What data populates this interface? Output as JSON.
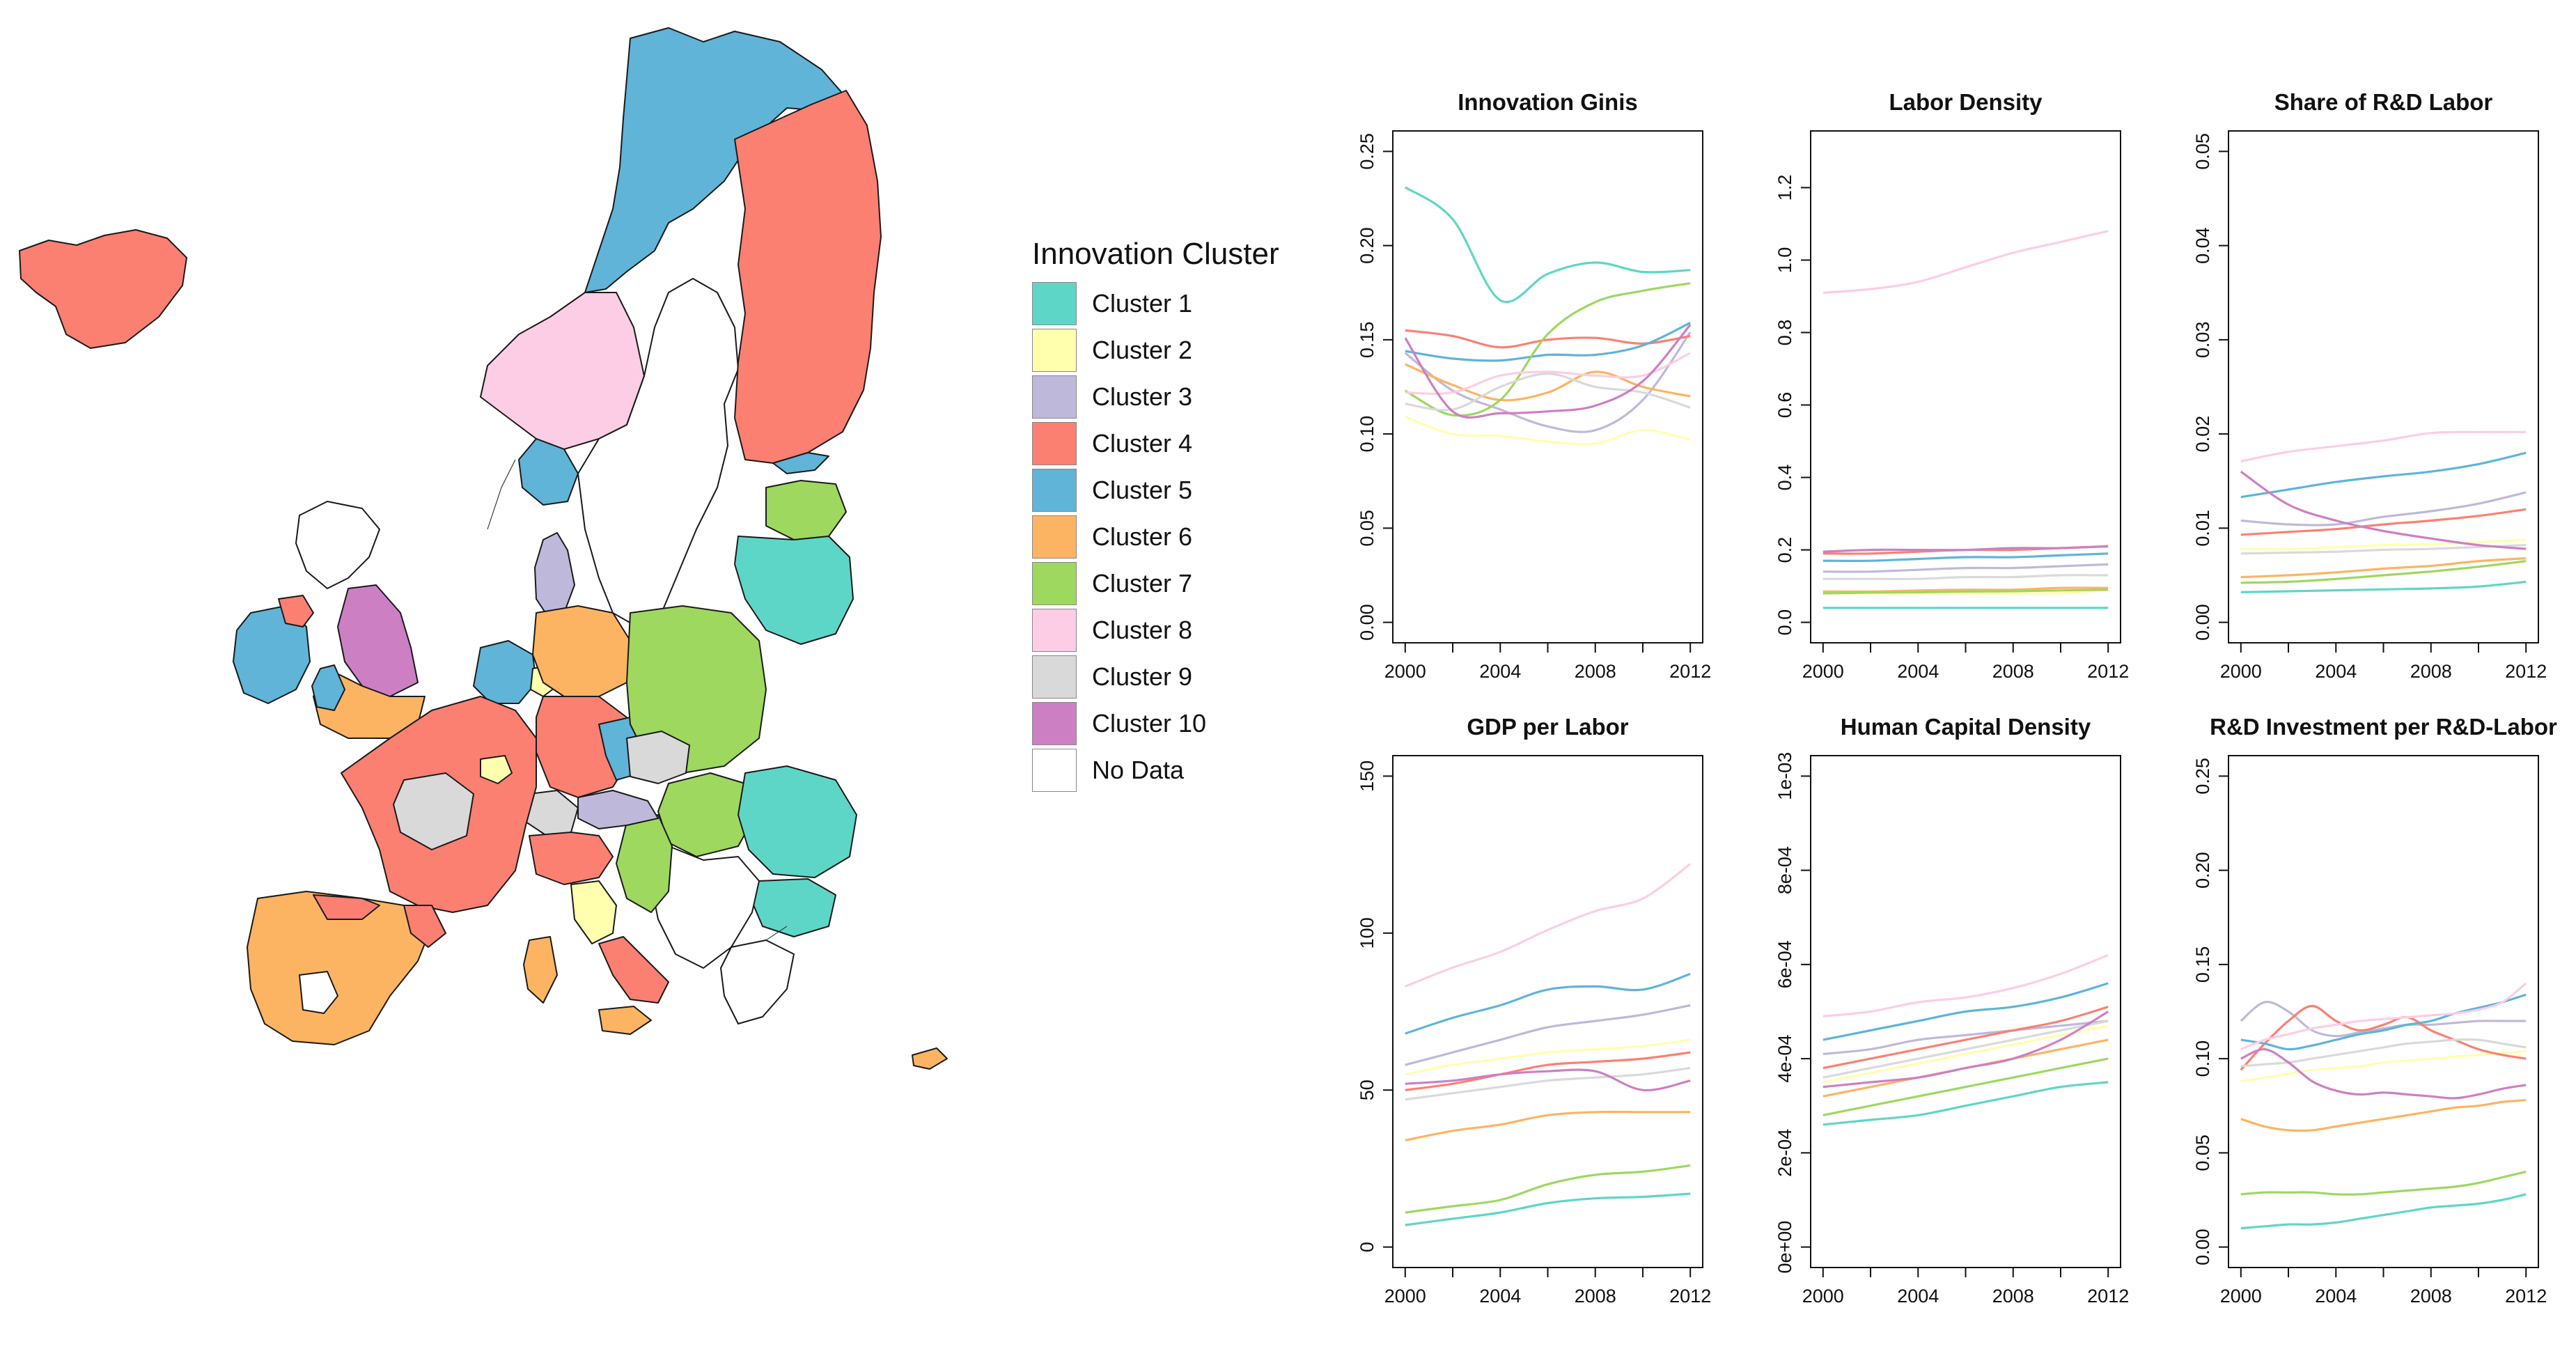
{
  "legend": {
    "title": "Innovation Cluster",
    "items": [
      {
        "label": "Cluster 1",
        "color": "#5ED6C7"
      },
      {
        "label": "Cluster 2",
        "color": "#FFFFAE"
      },
      {
        "label": "Cluster 3",
        "color": "#BEB9DA"
      },
      {
        "label": "Cluster 4",
        "color": "#FB8072"
      },
      {
        "label": "Cluster 5",
        "color": "#5FB4D8"
      },
      {
        "label": "Cluster 6",
        "color": "#FDB462"
      },
      {
        "label": "Cluster 7",
        "color": "#9ED85F"
      },
      {
        "label": "Cluster 8",
        "color": "#FCCDE5"
      },
      {
        "label": "Cluster 9",
        "color": "#D9D9D9"
      },
      {
        "label": "Cluster 10",
        "color": "#CD7FC4"
      },
      {
        "label": "No Data",
        "color": "#FFFFFF"
      }
    ]
  },
  "chart_data": [
    {
      "type": "line",
      "title": "Innovation Ginis",
      "x": [
        2000,
        2002,
        2004,
        2006,
        2008,
        2010,
        2012
      ],
      "xticks": [
        "2000",
        "2004",
        "2008",
        "2012"
      ],
      "ylim": [
        0,
        0.25
      ],
      "yticks": [
        "0.00",
        "0.05",
        "0.10",
        "0.15",
        "0.20",
        "0.25"
      ],
      "series": [
        {
          "name": "Cluster 1",
          "values": [
            0.231,
            0.214,
            0.171,
            0.185,
            0.191,
            0.186,
            0.187
          ]
        },
        {
          "name": "Cluster 2",
          "values": [
            0.109,
            0.1,
            0.099,
            0.096,
            0.095,
            0.102,
            0.097
          ]
        },
        {
          "name": "Cluster 3",
          "values": [
            0.143,
            0.123,
            0.113,
            0.104,
            0.102,
            0.118,
            0.154
          ]
        },
        {
          "name": "Cluster 4",
          "values": [
            0.155,
            0.152,
            0.146,
            0.15,
            0.151,
            0.148,
            0.152
          ]
        },
        {
          "name": "Cluster 5",
          "values": [
            0.144,
            0.14,
            0.139,
            0.142,
            0.142,
            0.147,
            0.159
          ]
        },
        {
          "name": "Cluster 6",
          "values": [
            0.137,
            0.126,
            0.118,
            0.122,
            0.133,
            0.125,
            0.12
          ]
        },
        {
          "name": "Cluster 7",
          "values": [
            0.123,
            0.11,
            0.118,
            0.153,
            0.17,
            0.176,
            0.18
          ]
        },
        {
          "name": "Cluster 8",
          "values": [
            0.122,
            0.122,
            0.131,
            0.133,
            0.131,
            0.131,
            0.143
          ]
        },
        {
          "name": "Cluster 9",
          "values": [
            0.116,
            0.113,
            0.125,
            0.132,
            0.125,
            0.122,
            0.114
          ]
        },
        {
          "name": "Cluster 10",
          "values": [
            0.151,
            0.112,
            0.111,
            0.112,
            0.115,
            0.128,
            0.158
          ]
        }
      ]
    },
    {
      "type": "line",
      "title": "Labor Density",
      "x": [
        2000,
        2002,
        2004,
        2006,
        2008,
        2010,
        2012
      ],
      "xticks": [
        "2000",
        "2004",
        "2008",
        "2012"
      ],
      "ylim": [
        0,
        1.3
      ],
      "yticks": [
        "0.0",
        "0.2",
        "0.4",
        "0.6",
        "0.8",
        "1.0",
        "1.2"
      ],
      "series": [
        {
          "name": "Cluster 1",
          "values": [
            0.04,
            0.04,
            0.04,
            0.04,
            0.04,
            0.04,
            0.04
          ]
        },
        {
          "name": "Cluster 2",
          "values": [
            0.08,
            0.08,
            0.08,
            0.08,
            0.08,
            0.08,
            0.09
          ]
        },
        {
          "name": "Cluster 3",
          "values": [
            0.14,
            0.14,
            0.145,
            0.15,
            0.15,
            0.155,
            0.16
          ]
        },
        {
          "name": "Cluster 4",
          "values": [
            0.19,
            0.19,
            0.195,
            0.2,
            0.2,
            0.205,
            0.21
          ]
        },
        {
          "name": "Cluster 5",
          "values": [
            0.17,
            0.17,
            0.175,
            0.18,
            0.18,
            0.185,
            0.19
          ]
        },
        {
          "name": "Cluster 6",
          "values": [
            0.085,
            0.085,
            0.088,
            0.09,
            0.09,
            0.095,
            0.095
          ]
        },
        {
          "name": "Cluster 7",
          "values": [
            0.08,
            0.082,
            0.083,
            0.085,
            0.086,
            0.088,
            0.09
          ]
        },
        {
          "name": "Cluster 8",
          "values": [
            0.91,
            0.92,
            0.94,
            0.98,
            1.02,
            1.05,
            1.08
          ]
        },
        {
          "name": "Cluster 9",
          "values": [
            0.12,
            0.12,
            0.12,
            0.125,
            0.125,
            0.13,
            0.13
          ]
        },
        {
          "name": "Cluster 10",
          "values": [
            0.195,
            0.2,
            0.2,
            0.2,
            0.205,
            0.205,
            0.21
          ]
        }
      ]
    },
    {
      "type": "line",
      "title": "Share of R&D Labor",
      "x": [
        2000,
        2002,
        2004,
        2006,
        2008,
        2010,
        2012
      ],
      "xticks": [
        "2000",
        "2004",
        "2008",
        "2012"
      ],
      "ylim": [
        0,
        0.05
      ],
      "yticks": [
        "0.00",
        "0.01",
        "0.02",
        "0.03",
        "0.04",
        "0.05"
      ],
      "series": [
        {
          "name": "Cluster 1",
          "values": [
            0.0032,
            0.0033,
            0.0034,
            0.0035,
            0.0036,
            0.0038,
            0.0043
          ]
        },
        {
          "name": "Cluster 2",
          "values": [
            0.0078,
            0.0078,
            0.008,
            0.0082,
            0.0083,
            0.0085,
            0.0088
          ]
        },
        {
          "name": "Cluster 3",
          "values": [
            0.0108,
            0.0104,
            0.0104,
            0.0112,
            0.0118,
            0.0126,
            0.0138
          ]
        },
        {
          "name": "Cluster 4",
          "values": [
            0.0093,
            0.0096,
            0.0099,
            0.0104,
            0.0108,
            0.0113,
            0.012
          ]
        },
        {
          "name": "Cluster 5",
          "values": [
            0.0133,
            0.0141,
            0.0149,
            0.0155,
            0.016,
            0.0168,
            0.018
          ]
        },
        {
          "name": "Cluster 6",
          "values": [
            0.0048,
            0.005,
            0.0053,
            0.0057,
            0.006,
            0.0065,
            0.0068
          ]
        },
        {
          "name": "Cluster 7",
          "values": [
            0.0042,
            0.0043,
            0.0046,
            0.005,
            0.0054,
            0.0059,
            0.0065
          ]
        },
        {
          "name": "Cluster 8",
          "values": [
            0.0171,
            0.0181,
            0.0187,
            0.0193,
            0.0201,
            0.0202,
            0.0202
          ]
        },
        {
          "name": "Cluster 9",
          "values": [
            0.0073,
            0.0074,
            0.0075,
            0.0077,
            0.0078,
            0.008,
            0.0082
          ]
        },
        {
          "name": "Cluster 10",
          "values": [
            0.016,
            0.0125,
            0.0108,
            0.0097,
            0.0089,
            0.0082,
            0.0078
          ]
        }
      ]
    },
    {
      "type": "line",
      "title": "GDP per Labor",
      "x": [
        2000,
        2002,
        2004,
        2006,
        2008,
        2010,
        2012
      ],
      "xticks": [
        "2000",
        "2004",
        "2008",
        "2012"
      ],
      "ylim": [
        0,
        150
      ],
      "yticks": [
        "0",
        "50",
        "100",
        "150"
      ],
      "series": [
        {
          "name": "Cluster 1",
          "values": [
            7,
            9,
            11,
            14,
            15.5,
            16,
            17
          ]
        },
        {
          "name": "Cluster 2",
          "values": [
            55,
            58,
            60,
            62,
            63,
            64,
            66
          ]
        },
        {
          "name": "Cluster 3",
          "values": [
            58,
            62,
            66,
            70,
            72,
            74,
            77
          ]
        },
        {
          "name": "Cluster 4",
          "values": [
            50,
            52,
            55,
            58,
            59,
            60,
            62
          ]
        },
        {
          "name": "Cluster 5",
          "values": [
            68,
            73,
            77,
            82,
            83,
            82,
            87
          ]
        },
        {
          "name": "Cluster 6",
          "values": [
            34,
            37,
            39,
            42,
            43,
            43,
            43
          ]
        },
        {
          "name": "Cluster 7",
          "values": [
            11,
            13,
            15,
            20,
            23,
            24,
            26
          ]
        },
        {
          "name": "Cluster 8",
          "values": [
            83,
            89,
            94,
            101,
            107,
            111,
            122
          ]
        },
        {
          "name": "Cluster 9",
          "values": [
            47,
            49,
            51,
            53,
            54,
            55,
            57
          ]
        },
        {
          "name": "Cluster 10",
          "values": [
            52,
            53,
            55,
            56,
            56,
            50,
            53
          ]
        }
      ]
    },
    {
      "type": "line",
      "title": "Human Capital Density",
      "x": [
        2000,
        2002,
        2004,
        2006,
        2008,
        2010,
        2012
      ],
      "xticks": [
        "2000",
        "2004",
        "2008",
        "2012"
      ],
      "ylim": [
        0,
        0.001
      ],
      "yticks": [
        "0e+00",
        "2e-04",
        "4e-04",
        "6e-04",
        "8e-04",
        "1e-03"
      ],
      "series": [
        {
          "name": "Cluster 1",
          "values": [
            0.00026,
            0.00027,
            0.00028,
            0.0003,
            0.00032,
            0.00034,
            0.00035
          ]
        },
        {
          "name": "Cluster 2",
          "values": [
            0.00035,
            0.00037,
            0.00039,
            0.00041,
            0.00043,
            0.00045,
            0.00047
          ]
        },
        {
          "name": "Cluster 3",
          "values": [
            0.00041,
            0.00042,
            0.00044,
            0.00045,
            0.00046,
            0.00047,
            0.00048
          ]
        },
        {
          "name": "Cluster 4",
          "values": [
            0.00038,
            0.0004,
            0.00042,
            0.00044,
            0.00046,
            0.00048,
            0.00051
          ]
        },
        {
          "name": "Cluster 5",
          "values": [
            0.00044,
            0.00046,
            0.00048,
            0.0005,
            0.00051,
            0.00053,
            0.00056
          ]
        },
        {
          "name": "Cluster 6",
          "values": [
            0.00032,
            0.00034,
            0.00036,
            0.00038,
            0.0004,
            0.00042,
            0.00044
          ]
        },
        {
          "name": "Cluster 7",
          "values": [
            0.00028,
            0.0003,
            0.00032,
            0.00034,
            0.00036,
            0.00038,
            0.0004
          ]
        },
        {
          "name": "Cluster 8",
          "values": [
            0.00049,
            0.0005,
            0.00052,
            0.00053,
            0.00055,
            0.00058,
            0.00062
          ]
        },
        {
          "name": "Cluster 9",
          "values": [
            0.00036,
            0.00038,
            0.0004,
            0.00042,
            0.00044,
            0.00046,
            0.00048
          ]
        },
        {
          "name": "Cluster 10",
          "values": [
            0.00034,
            0.00035,
            0.00036,
            0.00038,
            0.0004,
            0.00044,
            0.0005
          ]
        }
      ]
    },
    {
      "type": "line",
      "title": "R&D Investment per R&D-Labor",
      "x": [
        2000,
        2001,
        2002,
        2003,
        2004,
        2005,
        2006,
        2007,
        2008,
        2009,
        2010,
        2011,
        2012
      ],
      "xticks": [
        "2000",
        "2004",
        "2008",
        "2012"
      ],
      "ylim": [
        0,
        0.25
      ],
      "yticks": [
        "0.00",
        "0.05",
        "0.10",
        "0.15",
        "0.20",
        "0.25"
      ],
      "series": [
        {
          "name": "Cluster 1",
          "values": [
            0.01,
            0.011,
            0.012,
            0.012,
            0.013,
            0.015,
            0.017,
            0.019,
            0.021,
            0.022,
            0.023,
            0.025,
            0.028
          ]
        },
        {
          "name": "Cluster 2",
          "values": [
            0.088,
            0.09,
            0.092,
            0.094,
            0.095,
            0.096,
            0.098,
            0.099,
            0.1,
            0.101,
            0.102,
            0.103,
            0.104
          ]
        },
        {
          "name": "Cluster 3",
          "values": [
            0.12,
            0.13,
            0.125,
            0.115,
            0.112,
            0.114,
            0.116,
            0.118,
            0.118,
            0.119,
            0.12,
            0.12,
            0.12
          ]
        },
        {
          "name": "Cluster 4",
          "values": [
            0.094,
            0.108,
            0.12,
            0.128,
            0.12,
            0.115,
            0.118,
            0.122,
            0.115,
            0.11,
            0.105,
            0.102,
            0.1
          ]
        },
        {
          "name": "Cluster 5",
          "values": [
            0.11,
            0.108,
            0.105,
            0.107,
            0.11,
            0.113,
            0.115,
            0.118,
            0.12,
            0.124,
            0.127,
            0.13,
            0.134
          ]
        },
        {
          "name": "Cluster 6",
          "values": [
            0.068,
            0.064,
            0.062,
            0.062,
            0.064,
            0.066,
            0.068,
            0.07,
            0.072,
            0.074,
            0.075,
            0.077,
            0.078
          ]
        },
        {
          "name": "Cluster 7",
          "values": [
            0.028,
            0.029,
            0.029,
            0.029,
            0.028,
            0.028,
            0.029,
            0.03,
            0.031,
            0.032,
            0.034,
            0.037,
            0.04
          ]
        },
        {
          "name": "Cluster 8",
          "values": [
            0.105,
            0.11,
            0.113,
            0.116,
            0.118,
            0.12,
            0.121,
            0.122,
            0.123,
            0.124,
            0.126,
            0.13,
            0.14
          ]
        },
        {
          "name": "Cluster 9",
          "values": [
            0.096,
            0.097,
            0.098,
            0.1,
            0.102,
            0.104,
            0.106,
            0.108,
            0.109,
            0.11,
            0.11,
            0.108,
            0.106
          ]
        },
        {
          "name": "Cluster 10",
          "values": [
            0.1,
            0.105,
            0.098,
            0.088,
            0.083,
            0.081,
            0.082,
            0.081,
            0.08,
            0.079,
            0.081,
            0.084,
            0.086
          ]
        }
      ]
    }
  ]
}
